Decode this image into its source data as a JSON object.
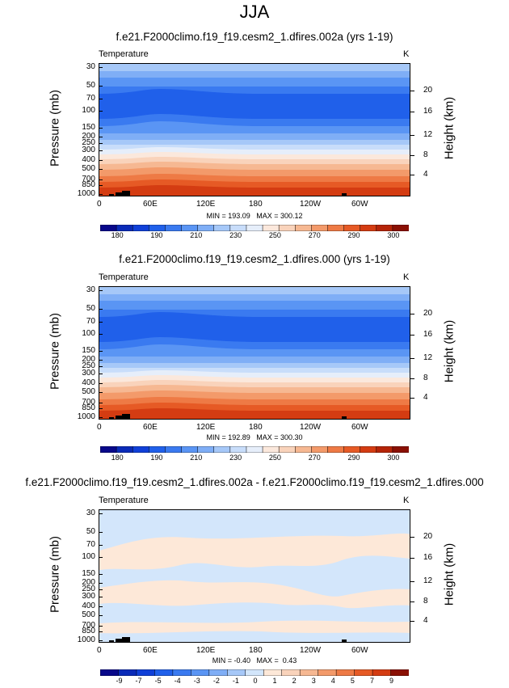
{
  "page_title": "JJA",
  "chart_data": [
    {
      "type": "heatmap",
      "title": "f.e21.F2000climo.f19_f19.cesm2_1.dfires.002a (yrs 1-19)",
      "field_label": "Temperature",
      "units": "K",
      "xlabel": "",
      "ylabel": "Pressure (mb)",
      "y2label": "Height (km)",
      "x_ticks": [
        "0",
        "60E",
        "120E",
        "180",
        "120W",
        "60W"
      ],
      "y_ticks": [
        "30",
        "50",
        "70",
        "100",
        "150",
        "200",
        "250",
        "300",
        "400",
        "500",
        "700",
        "850",
        "1000"
      ],
      "y2_ticks": [
        "20",
        "16",
        "12",
        "8",
        "4"
      ],
      "stats": "MIN = 193.09   MAX = 300.12",
      "min": 193.09,
      "max": 300.12,
      "colorbar_labels": [
        "180",
        "190",
        "210",
        "230",
        "250",
        "270",
        "290",
        "300"
      ]
    },
    {
      "type": "heatmap",
      "title": "f.e21.F2000climo.f19_f19.cesm2_1.dfires.000 (yrs 1-19)",
      "field_label": "Temperature",
      "units": "K",
      "xlabel": "",
      "ylabel": "Pressure (mb)",
      "y2label": "Height (km)",
      "x_ticks": [
        "0",
        "60E",
        "120E",
        "180",
        "120W",
        "60W"
      ],
      "y_ticks": [
        "30",
        "50",
        "70",
        "100",
        "150",
        "200",
        "250",
        "300",
        "400",
        "500",
        "700",
        "850",
        "1000"
      ],
      "y2_ticks": [
        "20",
        "16",
        "12",
        "8",
        "4"
      ],
      "stats": "MIN = 192.89   MAX = 300.30",
      "min": 192.89,
      "max": 300.3,
      "colorbar_labels": [
        "180",
        "190",
        "210",
        "230",
        "250",
        "270",
        "290",
        "300"
      ]
    },
    {
      "type": "heatmap",
      "title": "f.e21.F2000climo.f19_f19.cesm2_1.dfires.002a - f.e21.F2000climo.f19_f19.cesm2_1.dfires.000",
      "field_label": "Temperature",
      "units": "K",
      "xlabel": "",
      "ylabel": "Pressure (mb)",
      "y2label": "Height (km)",
      "x_ticks": [
        "0",
        "60E",
        "120E",
        "180",
        "120W",
        "60W"
      ],
      "y_ticks": [
        "30",
        "50",
        "70",
        "100",
        "150",
        "200",
        "250",
        "300",
        "400",
        "500",
        "700",
        "850",
        "1000"
      ],
      "y2_ticks": [
        "20",
        "16",
        "12",
        "8",
        "4"
      ],
      "stats": "MIN = -0.40   MAX =  0.43",
      "min": -0.4,
      "max": 0.43,
      "colorbar_labels": [
        "-9",
        "-7",
        "-5",
        "-4",
        "-3",
        "-2",
        "-1",
        "0",
        "1",
        "2",
        "3",
        "4",
        "5",
        "7",
        "9"
      ]
    }
  ],
  "colors": {
    "temp_scale": [
      "#08088a",
      "#0a2bb8",
      "#1040d8",
      "#2060ea",
      "#3a7af0",
      "#5a95f4",
      "#7faef6",
      "#a6c8f8",
      "#c8ddfa",
      "#e6eefa",
      "#fbe8dc",
      "#f9d3bb",
      "#f6b892",
      "#f39a6a",
      "#ee7a45",
      "#e65a25",
      "#d43c12",
      "#b52408",
      "#8a1004"
    ],
    "diff_scale": [
      "#08088a",
      "#0a2bb8",
      "#1040d8",
      "#2060ea",
      "#3a7af0",
      "#5a95f4",
      "#7faef6",
      "#a6c8f8",
      "#d3e6fb",
      "#fde8d8",
      "#f9d3bb",
      "#f6b892",
      "#f39a6a",
      "#ee7a45",
      "#e65a25",
      "#d43c12",
      "#8a1004"
    ]
  }
}
